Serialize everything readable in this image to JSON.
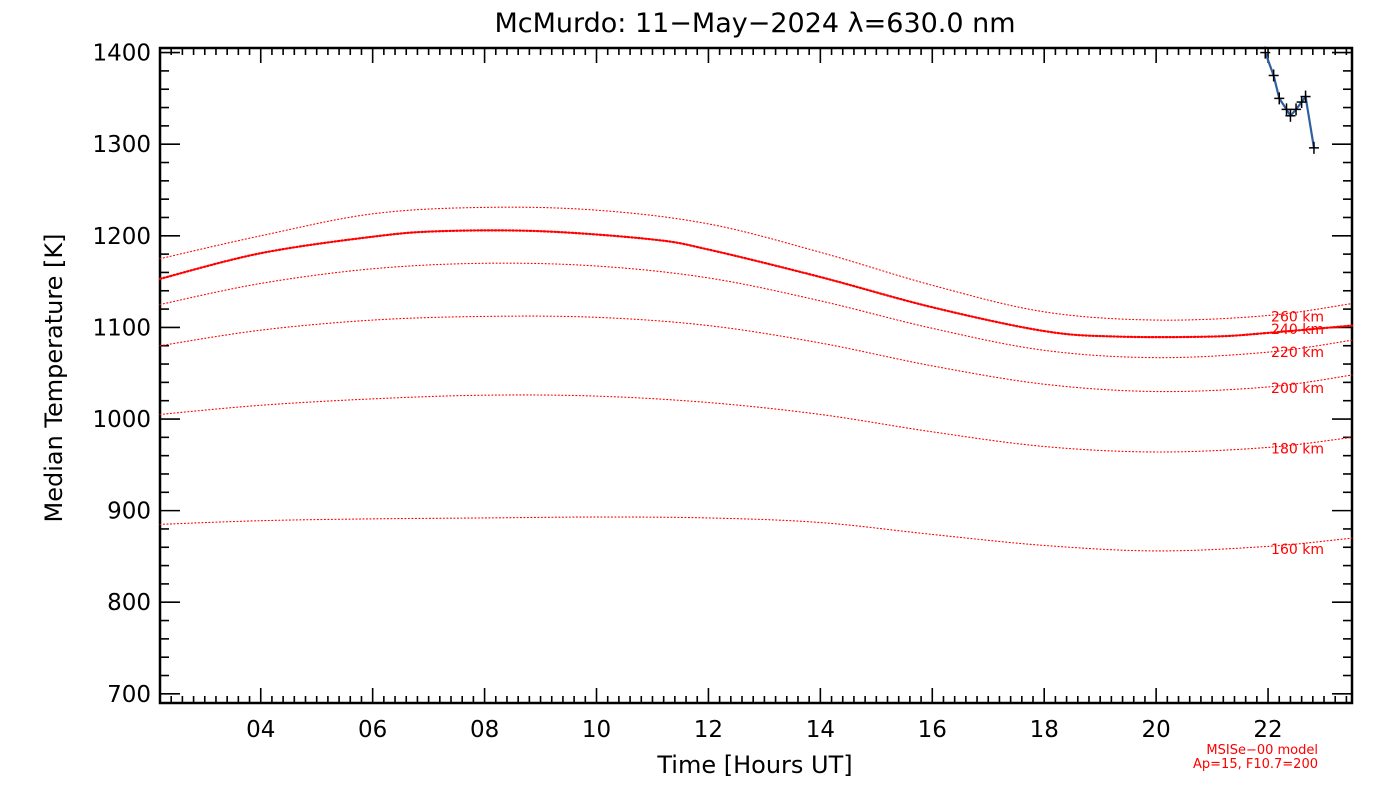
{
  "chart_data": {
    "type": "line",
    "title": "McMurdo: 11−May−2024 λ=630.0 nm",
    "xlabel": "Time [Hours UT]",
    "ylabel": "Median Temperature [K]",
    "xlim": [
      2.2,
      23.5
    ],
    "ylim": [
      690,
      1405
    ],
    "x_ticks": [
      4,
      6,
      8,
      10,
      12,
      14,
      16,
      18,
      20,
      22
    ],
    "x_tick_labels": [
      "04",
      "06",
      "08",
      "10",
      "12",
      "14",
      "16",
      "18",
      "20",
      "22"
    ],
    "y_ticks": [
      700,
      800,
      900,
      1000,
      1100,
      1200,
      1300,
      1400
    ],
    "y_tick_labels": [
      "700",
      "800",
      "900",
      "1000",
      "1100",
      "1200",
      "1300",
      "1400"
    ],
    "grid": false,
    "model_series": [
      {
        "name": "160 km",
        "label_at": [
          22,
          858
        ],
        "points": [
          [
            2.2,
            885
          ],
          [
            4,
            889
          ],
          [
            6,
            891
          ],
          [
            8,
            892
          ],
          [
            10,
            893
          ],
          [
            12,
            892
          ],
          [
            14,
            887
          ],
          [
            16,
            874
          ],
          [
            18,
            862
          ],
          [
            20,
            856
          ],
          [
            22,
            861
          ],
          [
            23.5,
            870
          ]
        ]
      },
      {
        "name": "180 km",
        "label_at": [
          22,
          968
        ],
        "points": [
          [
            2.2,
            1005
          ],
          [
            4,
            1015
          ],
          [
            6,
            1022
          ],
          [
            8,
            1026
          ],
          [
            10,
            1025
          ],
          [
            12,
            1018
          ],
          [
            14,
            1005
          ],
          [
            16,
            986
          ],
          [
            18,
            970
          ],
          [
            20,
            964
          ],
          [
            22,
            969
          ],
          [
            23.5,
            980
          ]
        ]
      },
      {
        "name": "200 km",
        "label_at": [
          22,
          1034
        ],
        "points": [
          [
            2.2,
            1080
          ],
          [
            4,
            1097
          ],
          [
            6,
            1108
          ],
          [
            8,
            1112
          ],
          [
            10,
            1111
          ],
          [
            12,
            1102
          ],
          [
            14,
            1083
          ],
          [
            16,
            1058
          ],
          [
            18,
            1038
          ],
          [
            20,
            1030
          ],
          [
            22,
            1035
          ],
          [
            23.5,
            1048
          ]
        ]
      },
      {
        "name": "220 km",
        "label_at": [
          22,
          1073
        ],
        "points": [
          [
            2.2,
            1125
          ],
          [
            4,
            1148
          ],
          [
            6,
            1164
          ],
          [
            8,
            1170
          ],
          [
            10,
            1167
          ],
          [
            12,
            1154
          ],
          [
            14,
            1129
          ],
          [
            16,
            1099
          ],
          [
            18,
            1075
          ],
          [
            20,
            1067
          ],
          [
            22,
            1073
          ],
          [
            23.5,
            1086
          ]
        ]
      },
      {
        "name": "240 km",
        "label_at": [
          22,
          1098
        ],
        "emphasis": true,
        "points": [
          [
            2.2,
            1153
          ],
          [
            4,
            1181
          ],
          [
            6,
            1199
          ],
          [
            7.2,
            1205
          ],
          [
            9,
            1205
          ],
          [
            11,
            1196
          ],
          [
            12,
            1185
          ],
          [
            14,
            1155
          ],
          [
            16,
            1122
          ],
          [
            18,
            1096
          ],
          [
            19.3,
            1090
          ],
          [
            21,
            1090
          ],
          [
            22,
            1094
          ],
          [
            23.5,
            1102
          ]
        ]
      },
      {
        "name": "260 km",
        "label_at": [
          22,
          1112
        ],
        "points": [
          [
            2.2,
            1175
          ],
          [
            4,
            1200
          ],
          [
            6,
            1224
          ],
          [
            8,
            1231
          ],
          [
            10,
            1228
          ],
          [
            12,
            1213
          ],
          [
            14,
            1182
          ],
          [
            16,
            1146
          ],
          [
            18,
            1117
          ],
          [
            20,
            1108
          ],
          [
            22,
            1113
          ],
          [
            23.5,
            1126
          ]
        ]
      }
    ],
    "measured_series": {
      "points": [
        [
          21.95,
          1400
        ],
        [
          22.1,
          1375
        ],
        [
          22.2,
          1350
        ],
        [
          22.33,
          1338
        ],
        [
          22.4,
          1331
        ],
        [
          22.5,
          1338
        ],
        [
          22.6,
          1346
        ],
        [
          22.67,
          1352
        ],
        [
          22.82,
          1296
        ]
      ]
    },
    "annotations": [
      "MSISe−00 model",
      "Ap=15, F10.7=200"
    ],
    "colors": {
      "model": "#ff0000",
      "measured_line": "#2f5f9f",
      "measured_point": "#000000",
      "axis": "#000000"
    }
  }
}
